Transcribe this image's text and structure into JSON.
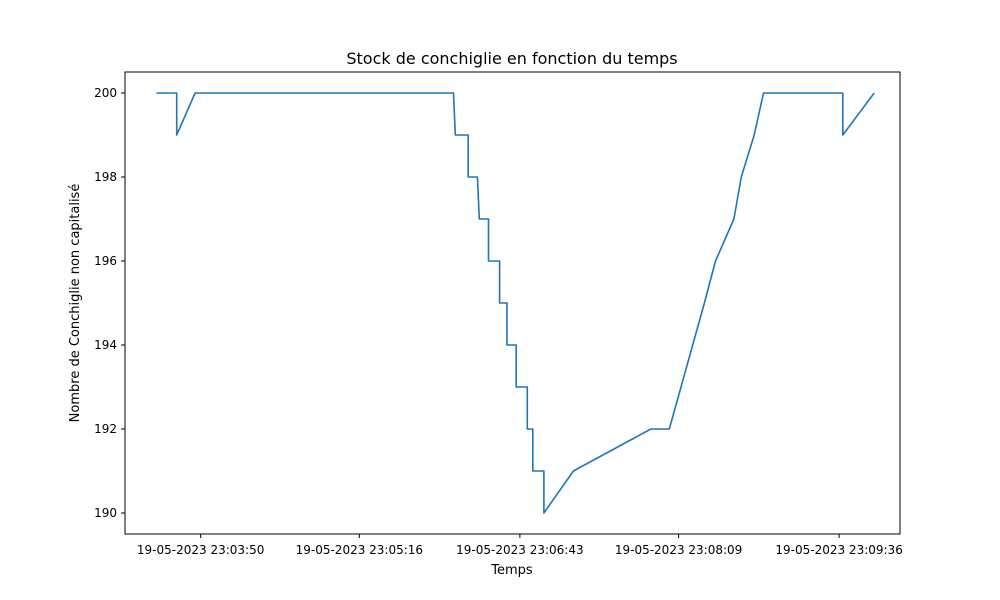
{
  "chart_data": {
    "type": "line",
    "title": "Stock de conchiglie en fonction du temps",
    "xlabel": "Temps",
    "ylabel": "Nombre de Conchiglie non capitalisé",
    "x_unit": "seconds",
    "x_ticks": [
      {
        "t": 230350,
        "label": "19-05-2023 23:03:50"
      },
      {
        "t": 230516,
        "label": "19-05-2023 23:05:16"
      },
      {
        "t": 230643,
        "label": "19-05-2023 23:06:43"
      },
      {
        "t": 230809,
        "label": "19-05-2023 23:08:09"
      },
      {
        "t": 230936,
        "label": "19-05-2023 23:09:36"
      }
    ],
    "y_ticks": [
      190,
      192,
      194,
      196,
      198,
      200
    ],
    "xlim": [
      "19-05-2023 23:03:09",
      "19-05-2023 23:10:09"
    ],
    "ylim": [
      189.5,
      200.5
    ],
    "grid": false,
    "series": [
      {
        "name": "",
        "color": "#1f77b4",
        "points": [
          [
            "19-05-2023 23:03:26",
            200
          ],
          [
            "19-05-2023 23:03:37",
            200
          ],
          [
            "19-05-2023 23:03:37",
            199
          ],
          [
            "19-05-2023 23:03:47",
            200
          ],
          [
            "19-05-2023 23:06:07",
            200
          ],
          [
            "19-05-2023 23:06:08",
            199
          ],
          [
            "19-05-2023 23:06:15",
            199
          ],
          [
            "19-05-2023 23:06:15",
            198
          ],
          [
            "19-05-2023 23:06:20",
            198
          ],
          [
            "19-05-2023 23:06:21",
            197
          ],
          [
            "19-05-2023 23:06:26",
            197
          ],
          [
            "19-05-2023 23:06:26",
            196
          ],
          [
            "19-05-2023 23:06:32",
            196
          ],
          [
            "19-05-2023 23:06:32",
            195
          ],
          [
            "19-05-2023 23:06:36",
            195
          ],
          [
            "19-05-2023 23:06:36",
            194
          ],
          [
            "19-05-2023 23:06:41",
            194
          ],
          [
            "19-05-2023 23:06:41",
            193
          ],
          [
            "19-05-2023 23:06:47",
            193
          ],
          [
            "19-05-2023 23:06:47",
            192
          ],
          [
            "19-05-2023 23:06:50",
            192
          ],
          [
            "19-05-2023 23:06:50",
            191
          ],
          [
            "19-05-2023 23:06:56",
            191
          ],
          [
            "19-05-2023 23:06:56",
            190
          ],
          [
            "19-05-2023 23:07:12",
            191
          ],
          [
            "19-05-2023 23:07:54",
            192
          ],
          [
            "19-05-2023 23:08:04",
            192
          ],
          [
            "19-05-2023 23:08:23",
            195
          ],
          [
            "19-05-2023 23:08:29",
            196
          ],
          [
            "19-05-2023 23:08:39",
            197
          ],
          [
            "19-05-2023 23:08:43",
            198
          ],
          [
            "19-05-2023 23:08:50",
            199
          ],
          [
            "19-05-2023 23:08:55",
            200
          ],
          [
            "19-05-2023 23:09:38",
            200
          ],
          [
            "19-05-2023 23:09:38",
            199
          ],
          [
            "19-05-2023 23:09:55",
            200
          ]
        ]
      }
    ]
  }
}
